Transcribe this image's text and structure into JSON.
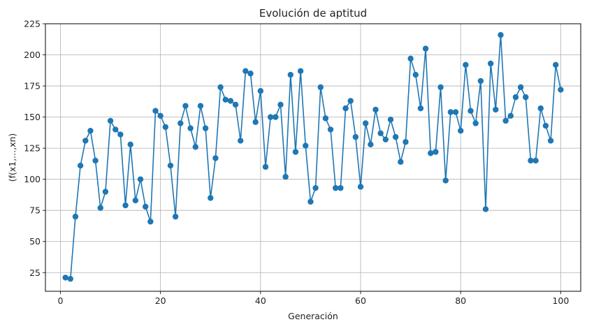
{
  "chart_data": {
    "type": "line",
    "title": "Evolución de aptitud",
    "xlabel": "Generación",
    "ylabel": "(f(x1,...,xn)",
    "xlim": [
      -3,
      104
    ],
    "ylim": [
      10,
      225
    ],
    "xticks": [
      0,
      20,
      40,
      60,
      80,
      100
    ],
    "yticks": [
      25,
      50,
      75,
      100,
      125,
      150,
      175,
      200,
      225
    ],
    "grid": true,
    "markers": true,
    "color": "#1f77b4",
    "series": [
      {
        "x": [
          1,
          2,
          3,
          4,
          5,
          6,
          7,
          8,
          9,
          10,
          11,
          12,
          13,
          14,
          15,
          16,
          17,
          18,
          19,
          20,
          21,
          22,
          23,
          24,
          25,
          26,
          27,
          28,
          29,
          30,
          31,
          32,
          33,
          34,
          35,
          36,
          37,
          38,
          39,
          40,
          41,
          42,
          43,
          44,
          45,
          46,
          47,
          48,
          49,
          50,
          51,
          52,
          53,
          54,
          55,
          56,
          57,
          58,
          59,
          60,
          61,
          62,
          63,
          64,
          65,
          66,
          67,
          68,
          69,
          70,
          71,
          72,
          73,
          74,
          75,
          76,
          77,
          78,
          79,
          80,
          81,
          82,
          83,
          84,
          85,
          86,
          87,
          88,
          89,
          90,
          91,
          92,
          93,
          94,
          95,
          96,
          97,
          98,
          99,
          100
        ],
        "y": [
          21,
          20,
          70,
          111,
          131,
          139,
          115,
          77,
          90,
          147,
          140,
          136,
          79,
          128,
          83,
          100,
          78,
          66,
          155,
          151,
          142,
          111,
          70,
          145,
          159,
          141,
          126,
          159,
          141,
          85,
          117,
          174,
          164,
          163,
          160,
          131,
          187,
          185,
          146,
          171,
          110,
          150,
          150,
          160,
          102,
          184,
          122,
          187,
          127,
          82,
          93,
          174,
          149,
          140,
          93,
          93,
          157,
          163,
          134,
          94,
          145,
          128,
          156,
          137,
          132,
          148,
          134,
          114,
          130,
          197,
          184,
          157,
          205,
          121,
          122,
          174,
          99,
          154,
          154,
          139,
          192,
          155,
          145,
          179,
          76,
          193,
          156,
          216,
          147,
          151,
          166,
          174,
          166,
          115,
          115,
          157,
          143,
          131,
          192,
          172
        ]
      }
    ]
  }
}
